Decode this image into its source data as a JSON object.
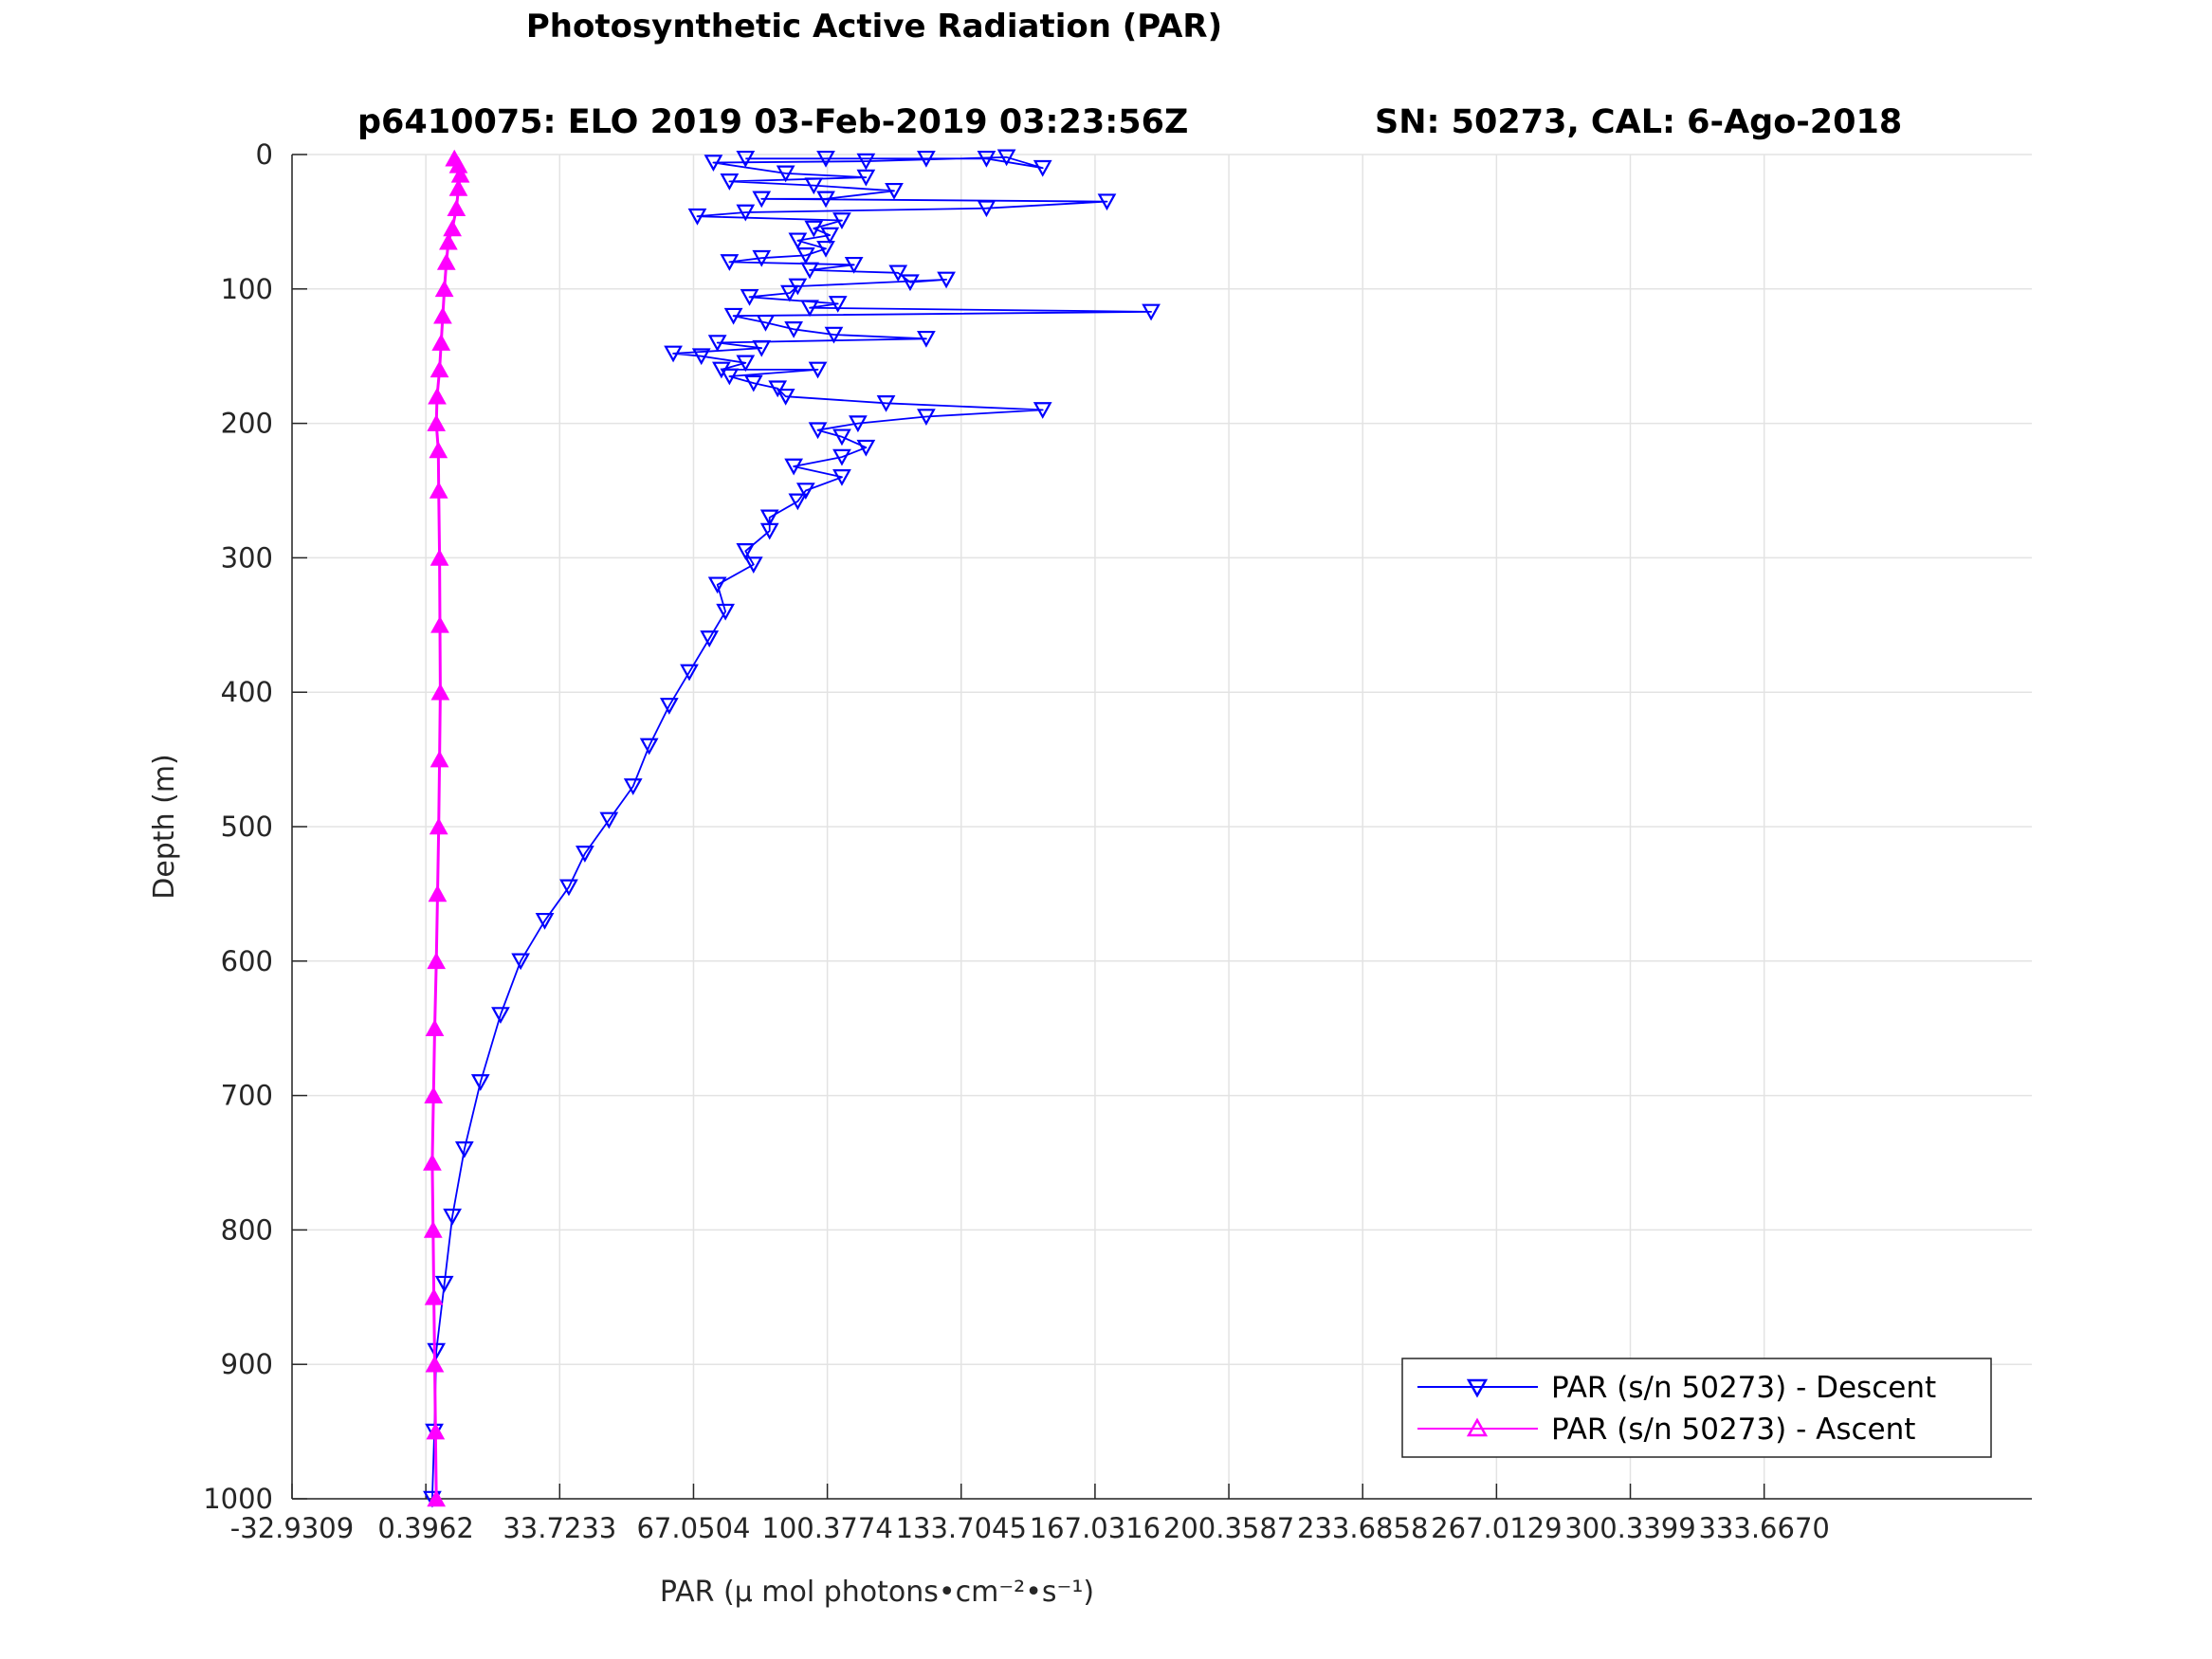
{
  "chart_data": {
    "type": "line",
    "title": "Photosynthetic Active Radiation (PAR)",
    "subtitle_left": "p6410075: ELO 2019 03-Feb-2019 03:23:56Z",
    "subtitle_right": "SN: 50273, CAL: 6-Ago-2018",
    "xlabel": "PAR (μ mol photons•cm⁻²•s⁻¹)",
    "ylabel": "Depth (m)",
    "xlim": [
      -32.9309,
      400.326
    ],
    "ylim": [
      0,
      1000
    ],
    "y_reversed": true,
    "grid": true,
    "xticks": [
      -32.9309,
      0.3962,
      33.7233,
      67.0504,
      100.3774,
      133.7045,
      167.0316,
      200.3587,
      233.6858,
      267.0129,
      300.3399,
      333.667
    ],
    "xtick_labels": [
      "-32.9309",
      "0.3962",
      "33.7233",
      "67.0504",
      "100.3774",
      "133.7045",
      "167.0316",
      "200.3587",
      "233.6858",
      "267.0129",
      "300.3399",
      "333.6670"
    ],
    "yticks": [
      0,
      100,
      200,
      300,
      400,
      500,
      600,
      700,
      800,
      900,
      1000
    ],
    "ytick_labels": [
      "0",
      "100",
      "200",
      "300",
      "400",
      "500",
      "600",
      "700",
      "800",
      "900",
      "1000"
    ],
    "legend_position": "bottom-right",
    "series": [
      {
        "name": "PAR (s/n 50273) - Descent",
        "color": "#0000ff",
        "marker": "triangle-down",
        "points": [
          [
            80,
            3
          ],
          [
            100,
            3
          ],
          [
            125,
            3
          ],
          [
            140,
            3
          ],
          [
            154,
            10
          ],
          [
            145,
            2
          ],
          [
            110,
            5
          ],
          [
            72,
            6
          ],
          [
            90,
            14
          ],
          [
            110,
            17
          ],
          [
            76,
            20
          ],
          [
            97,
            23
          ],
          [
            117,
            27
          ],
          [
            100,
            33
          ],
          [
            84,
            33
          ],
          [
            170,
            35
          ],
          [
            140,
            40
          ],
          [
            80,
            43
          ],
          [
            68,
            46
          ],
          [
            104,
            49
          ],
          [
            97,
            55
          ],
          [
            101,
            60
          ],
          [
            93,
            64
          ],
          [
            100,
            70
          ],
          [
            95,
            75
          ],
          [
            84,
            77
          ],
          [
            76,
            80
          ],
          [
            107,
            82
          ],
          [
            96,
            86
          ],
          [
            118,
            88
          ],
          [
            121,
            95
          ],
          [
            130,
            93
          ],
          [
            93,
            98
          ],
          [
            91,
            103
          ],
          [
            81,
            106
          ],
          [
            103,
            111
          ],
          [
            96,
            114
          ],
          [
            181,
            117
          ],
          [
            77,
            120
          ],
          [
            85,
            125
          ],
          [
            92,
            130
          ],
          [
            102,
            134
          ],
          [
            125,
            137
          ],
          [
            73,
            140
          ],
          [
            84,
            144
          ],
          [
            62,
            148
          ],
          [
            69,
            150
          ],
          [
            80,
            155
          ],
          [
            74,
            160
          ],
          [
            98,
            160
          ],
          [
            76,
            165
          ],
          [
            82,
            170
          ],
          [
            88,
            174
          ],
          [
            90,
            180
          ],
          [
            115,
            185
          ],
          [
            154,
            190
          ],
          [
            125,
            195
          ],
          [
            108,
            200
          ],
          [
            98,
            205
          ],
          [
            104,
            210
          ],
          [
            110,
            218
          ],
          [
            104,
            225
          ],
          [
            92,
            232
          ],
          [
            104,
            240
          ],
          [
            95,
            250
          ],
          [
            93,
            258
          ],
          [
            86,
            270
          ],
          [
            86,
            280
          ],
          [
            80,
            295
          ],
          [
            82,
            305
          ],
          [
            73,
            320
          ],
          [
            75,
            340
          ],
          [
            71,
            360
          ],
          [
            66,
            385
          ],
          [
            61,
            410
          ],
          [
            56,
            440
          ],
          [
            52,
            470
          ],
          [
            46,
            495
          ],
          [
            40,
            520
          ],
          [
            36,
            545
          ],
          [
            30,
            570
          ],
          [
            24,
            600
          ],
          [
            19,
            640
          ],
          [
            14,
            690
          ],
          [
            10,
            740
          ],
          [
            7,
            790
          ],
          [
            5,
            840
          ],
          [
            3,
            890
          ],
          [
            2.5,
            950
          ],
          [
            2,
            1000
          ]
        ]
      },
      {
        "name": "PAR (s/n 50273) - Ascent",
        "color": "#ff00ff",
        "marker": "triangle-up",
        "points": [
          [
            3,
            1000
          ],
          [
            2.8,
            950
          ],
          [
            2.6,
            900
          ],
          [
            2.4,
            850
          ],
          [
            2.2,
            800
          ],
          [
            2,
            750
          ],
          [
            2.3,
            700
          ],
          [
            2.6,
            650
          ],
          [
            3,
            600
          ],
          [
            3.3,
            550
          ],
          [
            3.6,
            500
          ],
          [
            3.8,
            450
          ],
          [
            4,
            400
          ],
          [
            3.9,
            350
          ],
          [
            3.8,
            300
          ],
          [
            3.6,
            250
          ],
          [
            3.5,
            220
          ],
          [
            3,
            200
          ],
          [
            3.2,
            180
          ],
          [
            3.8,
            160
          ],
          [
            4.2,
            140
          ],
          [
            4.6,
            120
          ],
          [
            5,
            100
          ],
          [
            5.5,
            80
          ],
          [
            6,
            65
          ],
          [
            7,
            55
          ],
          [
            8,
            40
          ],
          [
            8.5,
            25
          ],
          [
            9,
            15
          ],
          [
            8.5,
            8
          ],
          [
            7.5,
            3
          ]
        ]
      }
    ]
  }
}
